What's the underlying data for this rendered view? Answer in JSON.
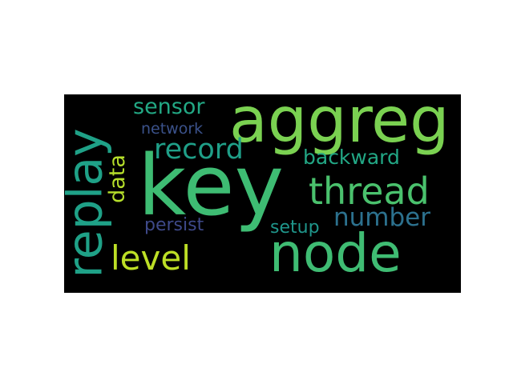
{
  "words": [
    {
      "text": "aggreg",
      "color": "#7ad151"
    },
    {
      "text": "key",
      "color": "#3ebc73"
    },
    {
      "text": "node",
      "color": "#3fbc73"
    },
    {
      "text": "replay",
      "color": "#1fa187"
    },
    {
      "text": "thread",
      "color": "#4ac16d"
    },
    {
      "text": "record",
      "color": "#1f9f88"
    },
    {
      "text": "level",
      "color": "#bddf26"
    },
    {
      "text": "number",
      "color": "#2c718e"
    },
    {
      "text": "sensor",
      "color": "#22a884"
    },
    {
      "text": "backward",
      "color": "#22a785"
    },
    {
      "text": "data",
      "color": "#b5de2b"
    },
    {
      "text": "network",
      "color": "#3b528b"
    },
    {
      "text": "persist",
      "color": "#3e4989"
    },
    {
      "text": "setup",
      "color": "#1f968b"
    }
  ]
}
